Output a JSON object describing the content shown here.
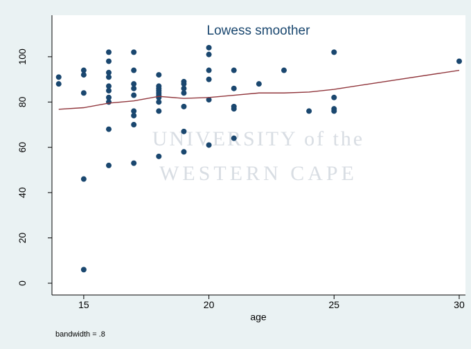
{
  "chart_data": {
    "type": "scatter",
    "title": "Lowess smoother",
    "x_label": "age",
    "note": "bandwidth = .8",
    "watermark": [
      "UNIVERSITY of the",
      "WESTERN CAPE"
    ],
    "xlim": [
      13.73,
      30.25
    ],
    "ylim": [
      -5.2,
      106.7
    ],
    "xticks": [
      15,
      20,
      25,
      30
    ],
    "yticks": [
      0,
      20,
      40,
      60,
      80,
      100
    ],
    "series": [
      {
        "type": "scatter",
        "color": "#1a476f",
        "x": [
          14,
          14,
          15,
          15,
          15,
          15,
          15,
          16,
          16,
          16,
          16,
          16,
          16,
          16,
          16,
          16,
          16,
          17,
          17,
          17,
          17,
          17,
          17,
          17,
          17,
          17,
          18,
          18,
          18,
          18,
          18,
          18,
          18,
          18,
          18,
          18,
          19,
          19,
          19,
          19,
          19,
          19,
          19,
          20,
          20,
          20,
          20,
          20,
          20,
          21,
          21,
          21,
          21,
          21,
          22,
          23,
          24,
          25,
          25,
          25,
          25,
          30
        ],
        "values": [
          91,
          88,
          94,
          92,
          84,
          46,
          6,
          102,
          98,
          93,
          91,
          87,
          85,
          82,
          80,
          68,
          52,
          102,
          94,
          88,
          86,
          83,
          76,
          74,
          70,
          53,
          92,
          87,
          86,
          85,
          84,
          83,
          82,
          80,
          76,
          56,
          89,
          88,
          86,
          84,
          78,
          67,
          58,
          104,
          101,
          94,
          90,
          81,
          61,
          94,
          86,
          78,
          77,
          64,
          88,
          94,
          76,
          102,
          82,
          77,
          76,
          98
        ]
      },
      {
        "type": "line",
        "color": "#90353b",
        "x": [
          14,
          15,
          16,
          17,
          18,
          19,
          20,
          21,
          22,
          23,
          24,
          25,
          30
        ],
        "values": [
          76.8,
          77.5,
          79.5,
          80.5,
          82.5,
          81.6,
          82,
          83,
          84,
          84,
          84.4,
          85.6,
          94
        ]
      }
    ]
  }
}
